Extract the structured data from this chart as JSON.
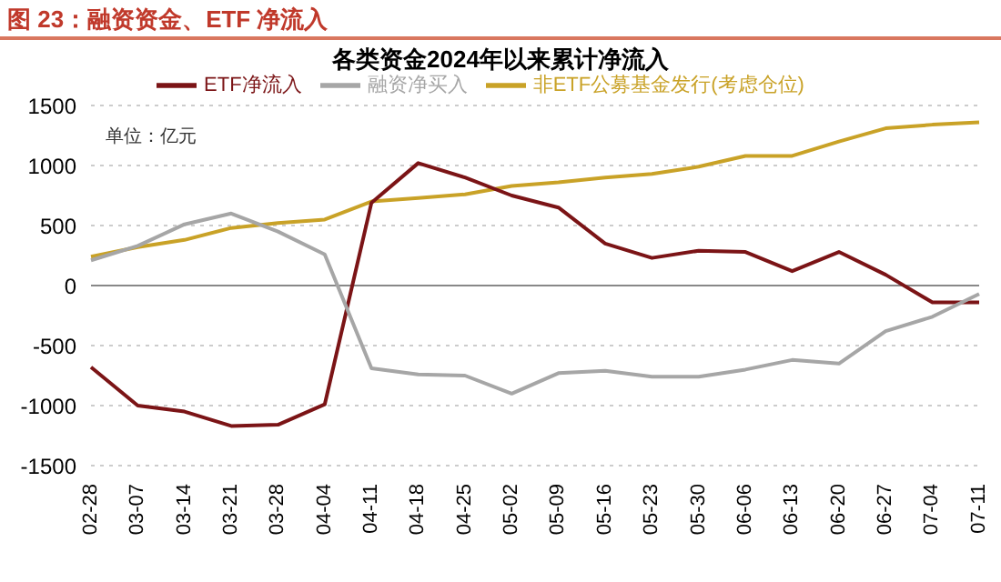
{
  "chart_data": {
    "type": "line",
    "title": "图 23：融资资金、ETF 净流入",
    "subtitle": "各类资金2024年以来累计净流入",
    "categories": [
      "02-28",
      "03-07",
      "03-14",
      "03-21",
      "03-28",
      "04-04",
      "04-11",
      "04-18",
      "04-25",
      "05-02",
      "05-09",
      "05-16",
      "05-23",
      "05-30",
      "06-06",
      "06-13",
      "06-20",
      "06-27",
      "07-04",
      "07-11"
    ],
    "series": [
      {
        "name": "非ETF公募基金发行(考虑仓位)",
        "color": "#c9a227",
        "values": [
          240,
          320,
          380,
          480,
          520,
          550,
          700,
          730,
          760,
          830,
          860,
          900,
          930,
          990,
          1080,
          1080,
          1200,
          1310,
          1340,
          1360
        ]
      },
      {
        "name": "ETF净流入",
        "color": "#7b1416",
        "values": [
          -680,
          -1000,
          -1050,
          -1170,
          -1160,
          -990,
          690,
          1020,
          900,
          750,
          650,
          350,
          230,
          290,
          280,
          120,
          280,
          90,
          -140,
          -140
        ]
      },
      {
        "name": "融资净买入",
        "color": "#a6a6a6",
        "values": [
          210,
          330,
          510,
          600,
          450,
          260,
          -690,
          -740,
          -750,
          -900,
          -730,
          -710,
          -760,
          -760,
          -700,
          -620,
          -650,
          -380,
          -260,
          -70
        ]
      }
    ],
    "ylim": [
      -1500,
      1500
    ],
    "yticks": [
      -1500,
      -1000,
      -500,
      0,
      500,
      1000,
      1500
    ],
    "grid": "y",
    "legend": "top",
    "marker": "none",
    "line_style": "solid",
    "annotations": [
      "单位：亿元"
    ]
  }
}
